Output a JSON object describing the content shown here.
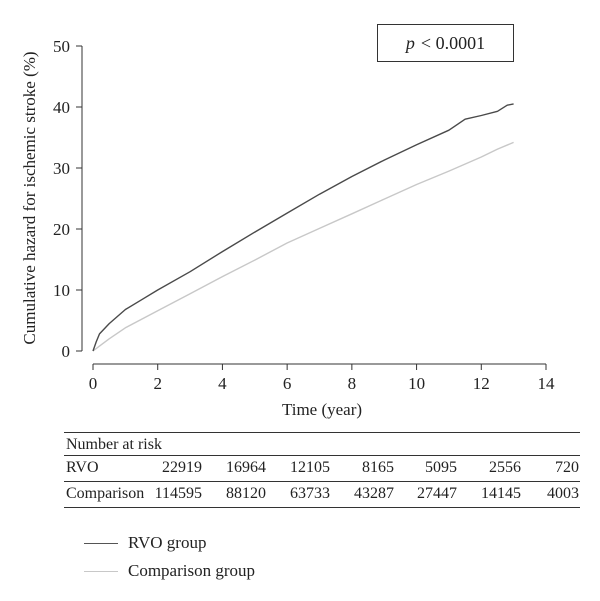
{
  "chart_data": {
    "type": "line",
    "xlabel": "Time (year)",
    "ylabel": "Cumulative hazard for ischemic stroke (%)",
    "xlim": [
      0,
      14
    ],
    "ylim": [
      0,
      50
    ],
    "xticks": [
      0,
      2,
      4,
      6,
      8,
      10,
      12,
      14
    ],
    "yticks": [
      0,
      10,
      20,
      30,
      40,
      50
    ],
    "annotation": {
      "italic": "p",
      "text": "< 0.0001"
    },
    "series": [
      {
        "name": "RVO group",
        "color": "#4a4a4a",
        "x": [
          0,
          0.1,
          0.2,
          0.5,
          1,
          1.5,
          2,
          3,
          4,
          5,
          6,
          7,
          8,
          9,
          10,
          11,
          11.5,
          12,
          12.5,
          12.8,
          13.0
        ],
        "y": [
          0,
          1.5,
          2.8,
          4.5,
          6.8,
          8.4,
          10,
          13,
          16.3,
          19.5,
          22.6,
          25.7,
          28.6,
          31.3,
          33.8,
          36.2,
          38.0,
          38.6,
          39.3,
          40.3,
          40.5
        ]
      },
      {
        "name": "Comparison group",
        "color": "#c8c8c8",
        "x": [
          0,
          0.2,
          0.5,
          1,
          2,
          3,
          4,
          5,
          6,
          7,
          8,
          9,
          10,
          11,
          12,
          12.5,
          13.0
        ],
        "y": [
          0,
          0.8,
          2,
          3.8,
          6.6,
          9.4,
          12.2,
          14.9,
          17.7,
          20.1,
          22.5,
          24.9,
          27.3,
          29.5,
          31.8,
          33.1,
          34.2
        ]
      }
    ]
  },
  "risk_table": {
    "header": "Number at risk",
    "rows": [
      {
        "label": "RVO",
        "values": [
          "22919",
          "16964",
          "12105",
          "8165",
          "5095",
          "2556",
          "720"
        ]
      },
      {
        "label": "Comparison",
        "values": [
          "114595",
          "88120",
          "63733",
          "43287",
          "27447",
          "14145",
          "4003"
        ]
      }
    ]
  }
}
